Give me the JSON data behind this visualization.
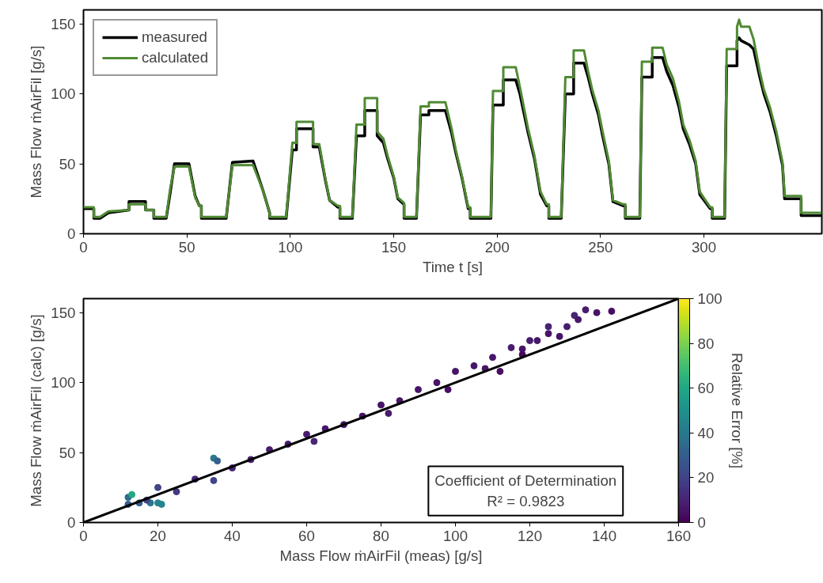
{
  "chart_data": [
    {
      "type": "line",
      "xlabel": "Time t [s]",
      "ylabel": "Mass Flow ṁAirFil [g/s]",
      "xlim": [
        0,
        357
      ],
      "xticks": [
        0,
        50,
        100,
        150,
        200,
        250,
        300
      ],
      "ylim": [
        0,
        160
      ],
      "yticks": [
        0,
        50,
        100,
        150
      ],
      "legend": "top left",
      "grid": false,
      "series": [
        {
          "name": "measured",
          "color": "#000000",
          "x": [
            0,
            5,
            5,
            8,
            12,
            22,
            22,
            30,
            30,
            34,
            34,
            40,
            42,
            44,
            51,
            54,
            56,
            57,
            57,
            69,
            72,
            82,
            87,
            90,
            90,
            98,
            101,
            103,
            103,
            111,
            111,
            114,
            117,
            119,
            123,
            124,
            124,
            130,
            132,
            136,
            136,
            142,
            142,
            145,
            147,
            150,
            152,
            155,
            155,
            161,
            163,
            167,
            167,
            175,
            178,
            180,
            183,
            186,
            187,
            187,
            197,
            198,
            203,
            203,
            209,
            211,
            213,
            215,
            218,
            221,
            224,
            225,
            225,
            231,
            233,
            237,
            237,
            242,
            244,
            246,
            249,
            251,
            254,
            256,
            261,
            262,
            262,
            269,
            270,
            275,
            275,
            280,
            282,
            285,
            288,
            290,
            293,
            296,
            298,
            303,
            304,
            304,
            310,
            311,
            316,
            316,
            317,
            318,
            322,
            324,
            327,
            329,
            332,
            335,
            338,
            339,
            347,
            347,
            357
          ],
          "values": [
            18,
            18,
            11,
            11,
            15,
            17,
            23,
            23,
            17,
            17,
            11,
            11,
            30,
            50,
            50,
            27,
            20,
            20,
            11,
            11,
            51,
            52,
            30,
            15,
            11,
            11,
            60,
            60,
            75,
            75,
            62,
            62,
            38,
            24,
            19,
            19,
            11,
            11,
            70,
            70,
            88,
            88,
            70,
            65,
            54,
            40,
            25,
            21,
            11,
            11,
            85,
            85,
            88,
            88,
            72,
            58,
            40,
            18,
            18,
            11,
            11,
            92,
            92,
            110,
            110,
            100,
            86,
            72,
            54,
            28,
            20,
            20,
            11,
            11,
            100,
            100,
            122,
            122,
            112,
            100,
            85,
            70,
            50,
            23,
            20,
            20,
            11,
            11,
            112,
            112,
            126,
            126,
            116,
            106,
            90,
            75,
            64,
            50,
            28,
            18,
            18,
            11,
            11,
            120,
            120,
            138,
            140,
            138,
            135,
            132,
            112,
            100,
            87,
            70,
            49,
            25,
            25,
            13,
            13
          ]
        },
        {
          "name": "calculated",
          "color": "#4f8a34",
          "x": [
            0,
            5,
            5,
            8,
            12,
            22,
            22,
            30,
            30,
            34,
            34,
            40,
            42,
            44,
            51,
            54,
            56,
            57,
            57,
            69,
            72,
            82,
            87,
            90,
            90,
            98,
            101,
            103,
            103,
            111,
            111,
            114,
            117,
            119,
            123,
            124,
            124,
            130,
            132,
            136,
            136,
            142,
            142,
            145,
            147,
            150,
            152,
            155,
            155,
            161,
            163,
            167,
            167,
            175,
            178,
            180,
            183,
            186,
            187,
            187,
            197,
            198,
            203,
            203,
            209,
            211,
            213,
            215,
            218,
            221,
            224,
            225,
            225,
            231,
            233,
            237,
            237,
            242,
            244,
            246,
            249,
            251,
            254,
            256,
            261,
            262,
            262,
            269,
            270,
            275,
            275,
            280,
            282,
            285,
            288,
            290,
            293,
            296,
            298,
            303,
            304,
            304,
            310,
            311,
            316,
            316,
            317,
            318,
            322,
            324,
            327,
            329,
            332,
            335,
            338,
            339,
            347,
            347,
            357
          ],
          "values": [
            19,
            19,
            12,
            12,
            16,
            17,
            21,
            21,
            17,
            17,
            12,
            12,
            33,
            48,
            48,
            26,
            20,
            20,
            12,
            12,
            49,
            49,
            30,
            15,
            12,
            12,
            65,
            65,
            80,
            80,
            64,
            64,
            39,
            24,
            20,
            20,
            12,
            12,
            78,
            78,
            97,
            97,
            73,
            68,
            56,
            41,
            26,
            22,
            12,
            12,
            91,
            91,
            94,
            94,
            75,
            60,
            41,
            19,
            19,
            12,
            12,
            102,
            102,
            119,
            119,
            105,
            90,
            75,
            56,
            30,
            21,
            21,
            12,
            12,
            112,
            112,
            131,
            131,
            116,
            103,
            88,
            73,
            52,
            24,
            21,
            21,
            12,
            12,
            123,
            123,
            133,
            133,
            121,
            111,
            94,
            78,
            67,
            52,
            30,
            19,
            19,
            12,
            12,
            132,
            132,
            148,
            153,
            148,
            148,
            139,
            116,
            103,
            90,
            73,
            51,
            27,
            27,
            15,
            15
          ]
        }
      ]
    },
    {
      "type": "scatter",
      "xlabel": "Mass Flow ṁAirFil (meas) [g/s]",
      "ylabel": "Mass Flow ṁAirFil (calc) [g/s]",
      "clabel": "Relative Error [%]",
      "xlim": [
        0,
        160
      ],
      "xticks": [
        0,
        20,
        40,
        60,
        80,
        100,
        120,
        140,
        160
      ],
      "ylim": [
        0,
        160
      ],
      "yticks": [
        0,
        50,
        100,
        150
      ],
      "clim": [
        0,
        100
      ],
      "cticks": [
        0,
        20,
        40,
        60,
        80,
        100
      ],
      "grid": false,
      "legend": false,
      "annotations": [
        "Coefficient of Determination",
        "R² = 0.9823"
      ],
      "series": [
        {
          "type": "scatter",
          "x": [
            12,
            12,
            13,
            15,
            18,
            20,
            21,
            20,
            17,
            25,
            30,
            35,
            36,
            35,
            40,
            45,
            50,
            55,
            60,
            62,
            65,
            70,
            75,
            80,
            82,
            85,
            90,
            95,
            98,
            100,
            105,
            108,
            110,
            112,
            115,
            118,
            120,
            122,
            125,
            128,
            130,
            132,
            135,
            138,
            142,
            133,
            125,
            118
          ],
          "values": [
            13,
            18,
            20,
            14,
            14,
            14,
            13,
            25,
            16,
            22,
            31,
            46,
            44,
            30,
            39,
            45,
            52,
            56,
            63,
            58,
            67,
            70,
            76,
            84,
            78,
            87,
            95,
            100,
            95,
            108,
            112,
            110,
            118,
            108,
            125,
            124,
            130,
            130,
            135,
            133,
            140,
            148,
            152,
            150,
            151,
            145,
            140,
            120
          ],
          "cvalues": [
            30,
            35,
            60,
            30,
            40,
            45,
            45,
            20,
            20,
            15,
            10,
            40,
            30,
            20,
            10,
            8,
            8,
            8,
            8,
            10,
            7,
            6,
            6,
            6,
            8,
            6,
            6,
            6,
            5,
            6,
            6,
            6,
            7,
            5,
            8,
            6,
            8,
            7,
            6,
            6,
            8,
            10,
            8,
            6,
            5,
            7,
            10,
            3
          ],
          "colors": [
            "#355f8d",
            "#2f6c8e",
            "#22a884",
            "#355f8d",
            "#2a788e",
            "#25858e",
            "#25858e",
            "#414487",
            "#414487",
            "#453781",
            "#472575",
            "#2a788e",
            "#355f8d",
            "#414487",
            "#472575",
            "#481c6e",
            "#481c6e",
            "#481c6e",
            "#481c6e",
            "#472575",
            "#481769",
            "#481467",
            "#481467",
            "#481467",
            "#481c6e",
            "#481467",
            "#481467",
            "#481467",
            "#470e61",
            "#481467",
            "#481467",
            "#481467",
            "#481769",
            "#470e61",
            "#481c6e",
            "#481467",
            "#481c6e",
            "#481769",
            "#481467",
            "#481467",
            "#481c6e",
            "#472575",
            "#481c6e",
            "#481467",
            "#470e61",
            "#481769",
            "#472575",
            "#46085c"
          ]
        },
        {
          "type": "line",
          "color": "#000000",
          "x": [
            0,
            160
          ],
          "values": [
            0,
            160
          ]
        }
      ]
    }
  ]
}
